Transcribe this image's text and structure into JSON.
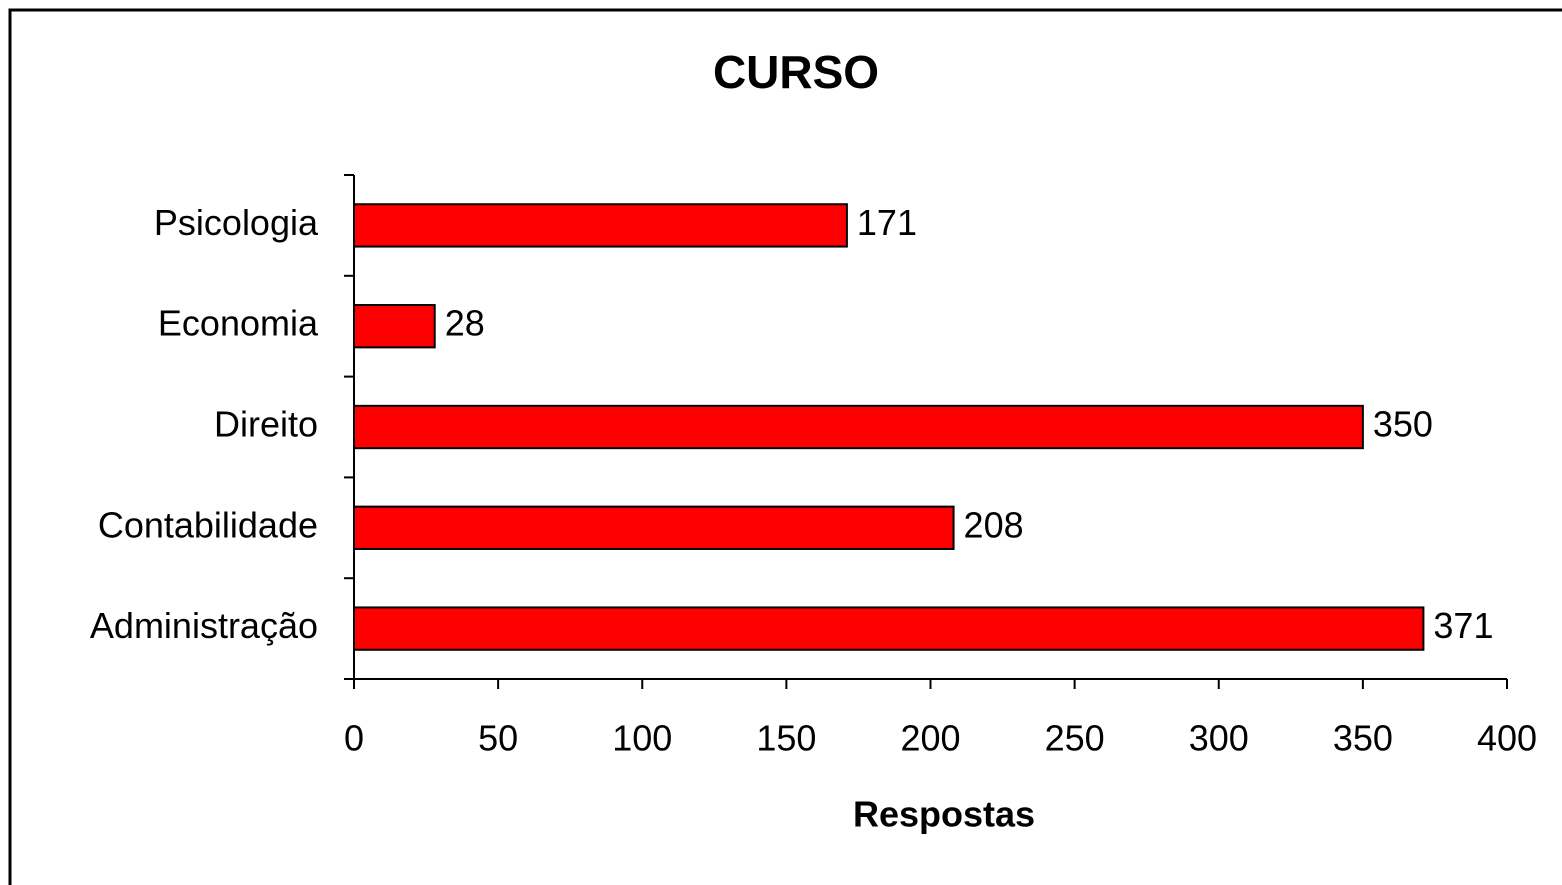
{
  "chart_data": {
    "type": "hbar",
    "title": "CURSO",
    "x_label": "Respostas",
    "categories": [
      "Administração",
      "Contabilidade",
      "Direito",
      "Economia",
      "Psicologia"
    ],
    "values": [
      371,
      208,
      350,
      28,
      171
    ],
    "color": "#ff0000",
    "xlim": [
      0,
      400
    ],
    "xticks": [
      0,
      50,
      100,
      150,
      200,
      250,
      300,
      350,
      400
    ],
    "grid": false
  }
}
